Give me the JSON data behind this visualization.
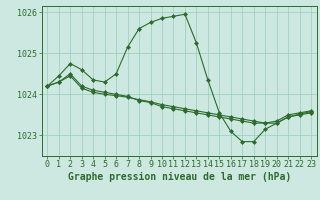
{
  "background_color": "#cce8e0",
  "grid_color": "#99ccbb",
  "line_color": "#2d6b2d",
  "marker_color": "#2d6b2d",
  "xlabel": "Graphe pression niveau de la mer (hPa)",
  "xlabel_fontsize": 7,
  "tick_fontsize": 6,
  "xlim": [
    -0.5,
    23.5
  ],
  "ylim": [
    1022.5,
    1026.15
  ],
  "yticks": [
    1023,
    1024,
    1025,
    1026
  ],
  "xticks": [
    0,
    1,
    2,
    3,
    4,
    5,
    6,
    7,
    8,
    9,
    10,
    11,
    12,
    13,
    14,
    15,
    16,
    17,
    18,
    19,
    20,
    21,
    22,
    23
  ],
  "series": [
    {
      "x": [
        0,
        1,
        2,
        3,
        4,
        5,
        6,
        7,
        8,
        9,
        10,
        11,
        12,
        13,
        14,
        15,
        16,
        17,
        18,
        19,
        20,
        21,
        22,
        23
      ],
      "y": [
        1024.2,
        1024.45,
        1024.75,
        1024.6,
        1024.35,
        1024.3,
        1024.5,
        1025.15,
        1025.6,
        1025.75,
        1025.85,
        1025.9,
        1025.95,
        1025.25,
        1024.35,
        1023.55,
        1023.1,
        1022.85,
        1022.85,
        1023.15,
        1023.3,
        1023.45,
        1023.5,
        1023.55
      ]
    },
    {
      "x": [
        0,
        1,
        2,
        3,
        4,
        5,
        6,
        7,
        8,
        9,
        10,
        11,
        12,
        13,
        14,
        15,
        16,
        17,
        18,
        19,
        20,
        21,
        22,
        23
      ],
      "y": [
        1024.2,
        1024.3,
        1024.5,
        1024.2,
        1024.1,
        1024.05,
        1024.0,
        1023.95,
        1023.85,
        1023.8,
        1023.7,
        1023.65,
        1023.6,
        1023.55,
        1023.5,
        1023.45,
        1023.4,
        1023.35,
        1023.3,
        1023.3,
        1023.35,
        1023.5,
        1023.55,
        1023.6
      ]
    },
    {
      "x": [
        0,
        1,
        2,
        3,
        4,
        5,
        6,
        7,
        8,
        9,
        10,
        11,
        12,
        13,
        14,
        15,
        16,
        17,
        18,
        19,
        20,
        21,
        22,
        23
      ],
      "y": [
        1024.2,
        1024.3,
        1024.45,
        1024.15,
        1024.05,
        1024.0,
        1023.97,
        1023.93,
        1023.87,
        1023.82,
        1023.75,
        1023.7,
        1023.65,
        1023.6,
        1023.55,
        1023.5,
        1023.45,
        1023.4,
        1023.35,
        1023.3,
        1023.3,
        1023.45,
        1023.52,
        1023.58
      ]
    }
  ]
}
